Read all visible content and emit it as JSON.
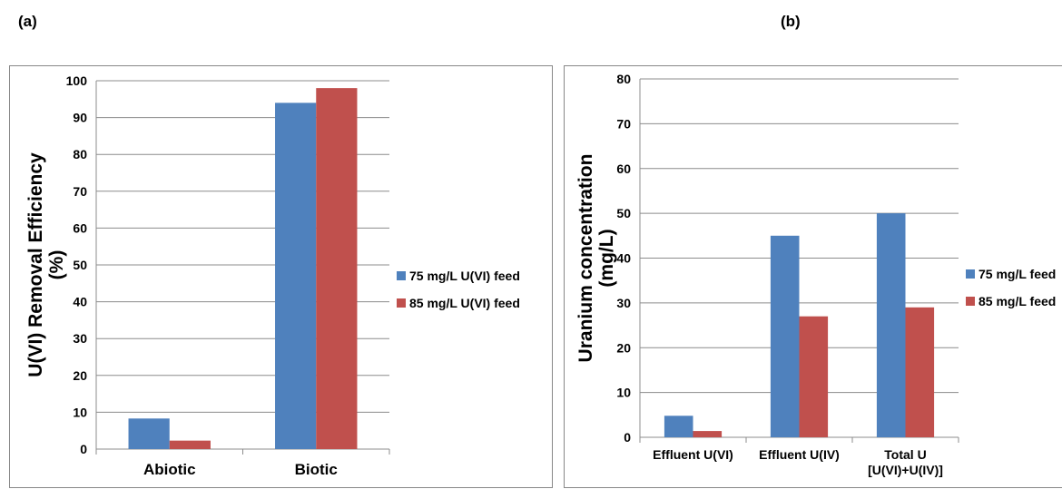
{
  "panels": {
    "a": "(a)",
    "b": "(b)"
  },
  "chart_data": [
    {
      "type": "bar",
      "categories": [
        "Abiotic",
        "Biotic"
      ],
      "series": [
        {
          "name": "75 mg/L U(VI) feed",
          "values": [
            8.3,
            94
          ],
          "color": "#4F81BD"
        },
        {
          "name": "85 mg/L U(VI) feed",
          "values": [
            2.3,
            98
          ],
          "color": "#C0504D"
        }
      ],
      "ylabel": "U(VI) Removal Efficiency\n(%)",
      "ylim": [
        0,
        100
      ],
      "yticks": [
        0,
        10,
        20,
        30,
        40,
        50,
        60,
        70,
        80,
        90,
        100
      ],
      "grid": true,
      "legend": "right"
    },
    {
      "type": "bar",
      "categories": [
        "Effluent U(VI)",
        "Effluent U(IV)",
        "Total U\n[U(VI)+U(IV)]"
      ],
      "series": [
        {
          "name": "75 mg/L feed",
          "values": [
            4.8,
            45,
            50
          ],
          "color": "#4F81BD"
        },
        {
          "name": "85 mg/L feed",
          "values": [
            1.4,
            27,
            29
          ],
          "color": "#C0504D"
        }
      ],
      "ylabel": "Uranium concentration\n(mg/L)",
      "ylim": [
        0,
        80
      ],
      "yticks": [
        0,
        10,
        20,
        30,
        40,
        50,
        60,
        70,
        80
      ],
      "grid": true,
      "legend": "right"
    }
  ]
}
